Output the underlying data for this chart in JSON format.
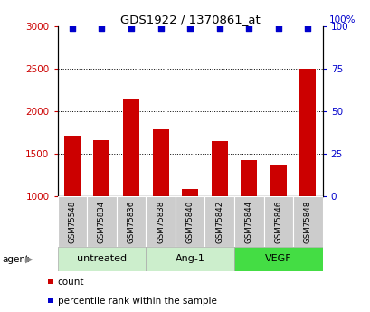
{
  "title": "GDS1922 / 1370861_at",
  "samples": [
    "GSM75548",
    "GSM75834",
    "GSM75836",
    "GSM75838",
    "GSM75840",
    "GSM75842",
    "GSM75844",
    "GSM75846",
    "GSM75848"
  ],
  "counts": [
    1720,
    1660,
    2150,
    1790,
    1090,
    1650,
    1430,
    1370,
    2500
  ],
  "percentiles": [
    99,
    99,
    99,
    99,
    99,
    99,
    99,
    99,
    99
  ],
  "groups": [
    {
      "label": "untreated",
      "indices": [
        0,
        1,
        2
      ],
      "color": "#cceecc"
    },
    {
      "label": "Ang-1",
      "indices": [
        3,
        4,
        5
      ],
      "color": "#cceecc"
    },
    {
      "label": "VEGF",
      "indices": [
        6,
        7,
        8
      ],
      "color": "#44dd44"
    }
  ],
  "ylim_left": [
    1000,
    3000
  ],
  "ylim_right": [
    0,
    100
  ],
  "yticks_left": [
    1000,
    1500,
    2000,
    2500,
    3000
  ],
  "yticks_right": [
    0,
    25,
    50,
    75,
    100
  ],
  "bar_color": "#cc0000",
  "dot_color": "#0000cc",
  "tick_label_area_color": "#cccccc",
  "legend_count_label": "count",
  "legend_pct_label": "percentile rank within the sample"
}
